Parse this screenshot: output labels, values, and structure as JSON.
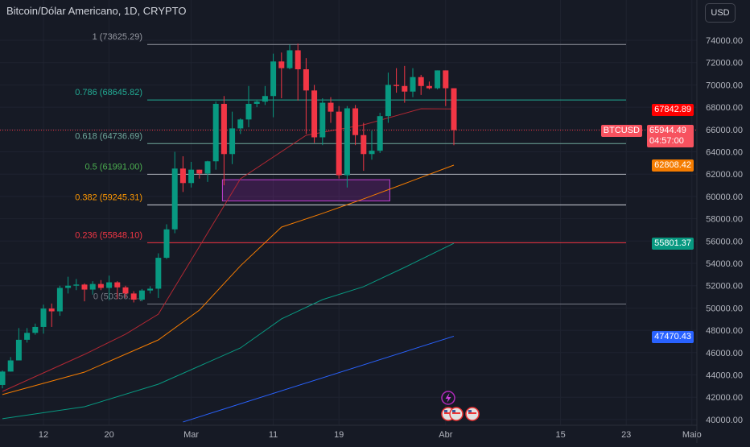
{
  "header": {
    "title": "Bitcoin/Dólar Americano, 1D, CRYPTO",
    "currency_button": "USD"
  },
  "price_axis": {
    "labels": [
      "74000.00",
      "72000.00",
      "70000.00",
      "68000.00",
      "66000.00",
      "64000.00",
      "62000.00",
      "60000.00",
      "58000.00",
      "56000.00",
      "54000.00",
      "52000.00",
      "50000.00",
      "48000.00",
      "46000.00",
      "44000.00",
      "42000.00",
      "40000.00"
    ]
  },
  "time_axis": {
    "labels": [
      {
        "t": "12",
        "d": 5
      },
      {
        "t": "20",
        "d": 13
      },
      {
        "t": "Mar",
        "d": 23
      },
      {
        "t": "11",
        "d": 33
      },
      {
        "t": "19",
        "d": 41
      },
      {
        "t": "Abr",
        "d": 54
      },
      {
        "t": "15",
        "d": 68
      },
      {
        "t": "23",
        "d": 76
      },
      {
        "t": "Maio",
        "d": 84
      }
    ]
  },
  "tags": {
    "ma20": {
      "value": "67842.89",
      "color": "#f23645"
    },
    "symbol": "BTCUSD",
    "last": {
      "value": "65944.49",
      "countdown": "04:57:00",
      "color": "#f7525f"
    },
    "ma50": {
      "value": "62808.42",
      "color": "#f57c00"
    },
    "ma100": {
      "value": "55801.37",
      "color": "#089981"
    },
    "ma200": {
      "value": "47470.43",
      "color": "#2962ff"
    }
  },
  "fib": [
    {
      "label": "1 (73625.29)",
      "price": 73625.29,
      "color": "#9598a1",
      "line": "#9598a1"
    },
    {
      "label": "0.786 (68645.82)",
      "price": 68645.82,
      "color": "#22ab94",
      "line": "#22ab94"
    },
    {
      "label": "0.618 (64736.69)",
      "price": 64736.69,
      "color": "#6fa89c",
      "line": "#6fa89c"
    },
    {
      "label": "0.5 (61991.00)",
      "price": 61991.0,
      "color": "#4caf50",
      "line": "#b2b5be"
    },
    {
      "label": "0.382 (59245.31)",
      "price": 59245.31,
      "color": "#ff9800",
      "line": "#d1d4dc"
    },
    {
      "label": "0.236 (55848.10)",
      "price": 55848.1,
      "color": "#f23645",
      "line": "#f23645"
    },
    {
      "label": "0 (50356.…)",
      "price": 50356,
      "color": "#787b86",
      "line": "#787b86"
    }
  ],
  "chart_data": {
    "type": "candlestick",
    "symbol": "BTCUSD",
    "interval": "1D",
    "start": "Feb 7",
    "ylim": [
      39500,
      74500
    ],
    "ohlc": [
      [
        43100,
        44400,
        42800,
        44300
      ],
      [
        44300,
        45600,
        44300,
        45300
      ],
      [
        45300,
        48200,
        45300,
        47150
      ],
      [
        47150,
        48200,
        46900,
        47770
      ],
      [
        47770,
        48600,
        47600,
        48300
      ],
      [
        48300,
        50300,
        47700,
        49950
      ],
      [
        49950,
        50400,
        48300,
        49700
      ],
      [
        49700,
        52000,
        49300,
        51800
      ],
      [
        51800,
        52800,
        51300,
        52000
      ],
      [
        52000,
        52600,
        51600,
        52100
      ],
      [
        52100,
        52200,
        50600,
        51650
      ],
      [
        51650,
        52400,
        51200,
        52150
      ],
      [
        52150,
        52500,
        51600,
        51800
      ],
      [
        51800,
        52900,
        50700,
        52300
      ],
      [
        52300,
        52400,
        50800,
        51850
      ],
      [
        51850,
        52000,
        50900,
        51300
      ],
      [
        51300,
        51500,
        50500,
        50750
      ],
      [
        50750,
        51700,
        50600,
        51570
      ],
      [
        51570,
        51950,
        51300,
        51730
      ],
      [
        51730,
        54900,
        50900,
        54500
      ],
      [
        54500,
        57500,
        54400,
        57050
      ],
      [
        57050,
        64000,
        56700,
        62500
      ],
      [
        62500,
        63600,
        60400,
        61200
      ],
      [
        61200,
        63100,
        60800,
        62400
      ],
      [
        62400,
        62400,
        61600,
        62050
      ],
      [
        62050,
        63200,
        61300,
        63150
      ],
      [
        63150,
        68500,
        62400,
        68300
      ],
      [
        68300,
        69000,
        61000,
        63800
      ],
      [
        63800,
        67600,
        62900,
        66100
      ],
      [
        66100,
        67000,
        65600,
        66900
      ],
      [
        66900,
        69900,
        66200,
        68300
      ],
      [
        68300,
        68600,
        68000,
        68500
      ],
      [
        68500,
        69900,
        68200,
        69000
      ],
      [
        69000,
        72800,
        67100,
        72100
      ],
      [
        72100,
        72900,
        68800,
        71500
      ],
      [
        71500,
        73600,
        71400,
        73100
      ],
      [
        73100,
        73700,
        68600,
        71400
      ],
      [
        71400,
        72400,
        65600,
        69500
      ],
      [
        69500,
        70000,
        64800,
        65300
      ],
      [
        65300,
        68800,
        64600,
        68400
      ],
      [
        68400,
        68900,
        66600,
        67600
      ],
      [
        67600,
        68100,
        61600,
        61900
      ],
      [
        61900,
        68100,
        60800,
        67900
      ],
      [
        67900,
        68200,
        64600,
        65500
      ],
      [
        65500,
        66600,
        62300,
        63800
      ],
      [
        63800,
        65900,
        63300,
        64100
      ],
      [
        64100,
        67500,
        63900,
        67200
      ],
      [
        67200,
        71100,
        66600,
        70000
      ],
      [
        70000,
        71500,
        69300,
        69900
      ],
      [
        69900,
        71700,
        68400,
        69400
      ],
      [
        69400,
        71500,
        68900,
        70700
      ],
      [
        70700,
        70900,
        69100,
        69900
      ],
      [
        69900,
        70300,
        69600,
        69700
      ],
      [
        69700,
        71300,
        69600,
        71300
      ],
      [
        71300,
        71300,
        68100,
        69700
      ],
      [
        69700,
        69700,
        64600,
        65944
      ]
    ],
    "moving_averages": [
      {
        "name": "MA20",
        "color": "#b22833",
        "points": [
          [
            0,
            42520
          ],
          [
            10,
            45840
          ],
          [
            15,
            47650
          ],
          [
            19,
            49450
          ],
          [
            29,
            61580
          ],
          [
            37,
            65480
          ],
          [
            44,
            66420
          ],
          [
            51,
            67860
          ],
          [
            55,
            67843
          ]
        ]
      },
      {
        "name": "MA50",
        "color": "#f57c00",
        "points": [
          [
            0,
            42240
          ],
          [
            10,
            44250
          ],
          [
            19,
            47140
          ],
          [
            24,
            49810
          ],
          [
            29,
            53780
          ],
          [
            34,
            57250
          ],
          [
            39,
            58480
          ],
          [
            44,
            59780
          ],
          [
            49,
            61150
          ],
          [
            55,
            62808
          ]
        ]
      },
      {
        "name": "MA100",
        "color": "#089981",
        "points": [
          [
            0,
            40070
          ],
          [
            10,
            41150
          ],
          [
            19,
            43170
          ],
          [
            29,
            46420
          ],
          [
            34,
            49020
          ],
          [
            39,
            50750
          ],
          [
            44,
            51910
          ],
          [
            49,
            53640
          ],
          [
            55,
            55801
          ]
        ]
      },
      {
        "name": "MA200",
        "color": "#2962ff",
        "points": [
          [
            22,
            39780
          ],
          [
            55,
            47470
          ]
        ]
      }
    ],
    "zone": {
      "from_day": 27,
      "to_day": 47,
      "low": 59600,
      "high": 61500
    },
    "last_price": 65944.49
  }
}
